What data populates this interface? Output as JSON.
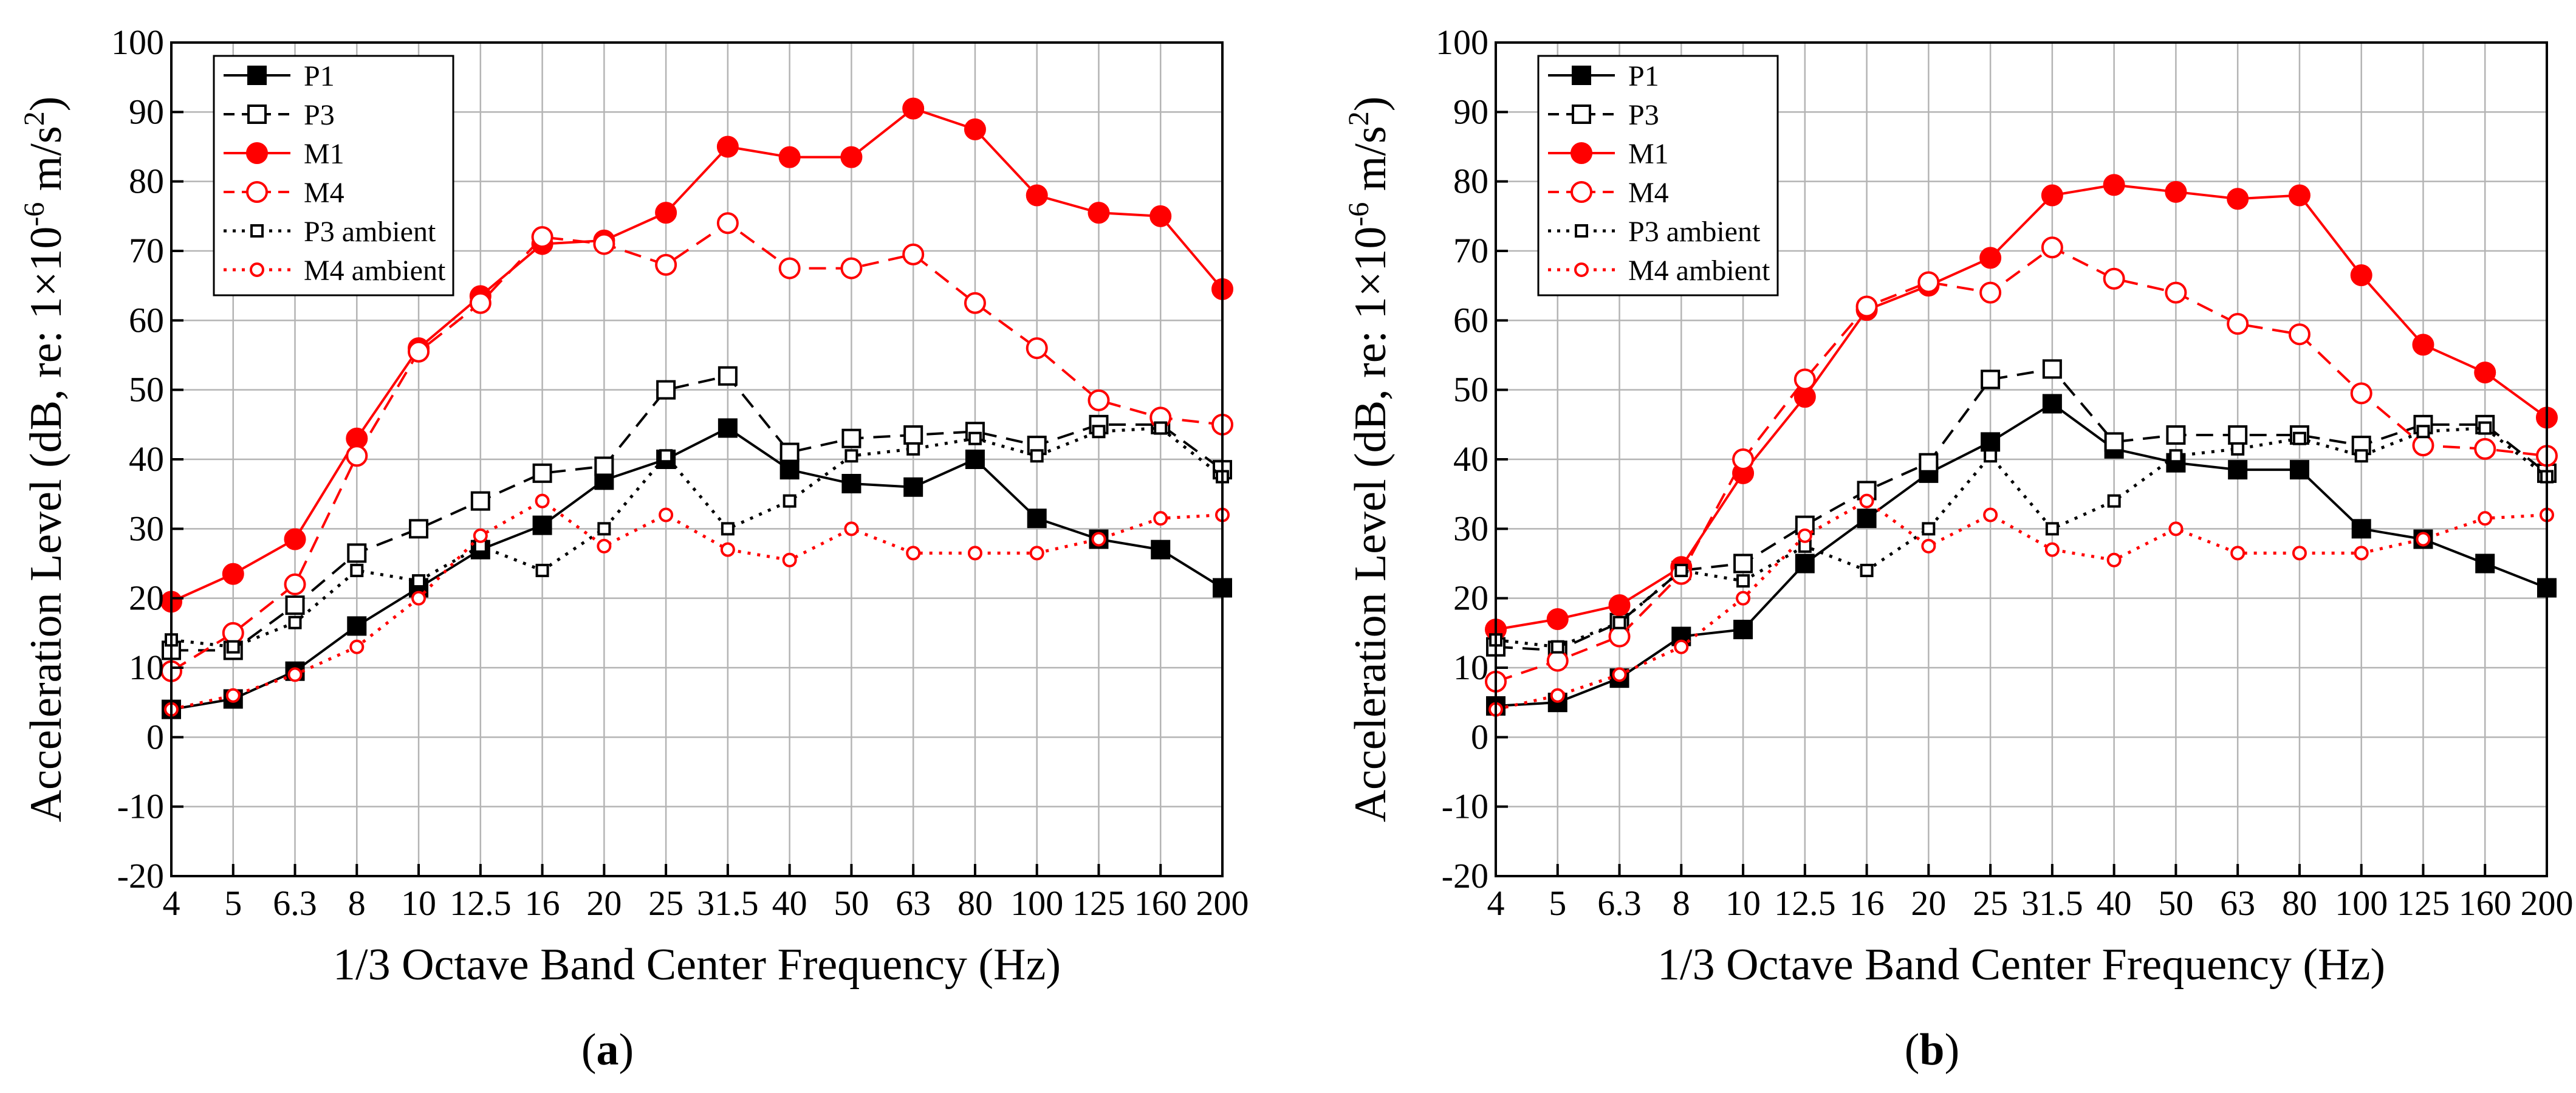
{
  "chart_data": [
    {
      "panel_label": "a",
      "type": "line",
      "xlabel": "1/3 Octave Band Center Frequency (Hz)",
      "ylabel": {
        "main": "Acceleration Level (dB, re: 1×10",
        "exp1": "-6",
        "mid": " m/s",
        "exp2": "2",
        "end": ")"
      },
      "categories": [
        "4",
        "5",
        "6.3",
        "8",
        "10",
        "12.5",
        "16",
        "20",
        "25",
        "31.5",
        "40",
        "50",
        "63",
        "80",
        "100",
        "125",
        "160",
        "200"
      ],
      "ylim": [
        -20,
        100
      ],
      "yticks": [
        -20,
        -10,
        0,
        10,
        20,
        30,
        40,
        50,
        60,
        70,
        80,
        90,
        100
      ],
      "grid": true,
      "legend_position": "top-left",
      "series": [
        {
          "name": "P1",
          "color": "#000000",
          "dash": "solid",
          "marker": "square",
          "filled": true,
          "values": [
            4,
            5.5,
            9.5,
            16,
            21.5,
            27,
            30.5,
            37,
            40,
            44.5,
            38.5,
            36.5,
            36,
            40,
            31.5,
            28.5,
            27,
            21.5
          ]
        },
        {
          "name": "P3",
          "color": "#000000",
          "dash": "dashed",
          "marker": "square",
          "filled": false,
          "values": [
            12.5,
            12.5,
            19,
            26.5,
            30,
            34,
            38,
            39,
            50,
            52,
            41,
            43,
            43.5,
            44,
            42,
            45,
            45,
            38.5
          ]
        },
        {
          "name": "M1",
          "color": "#ff0000",
          "dash": "solid",
          "marker": "circle",
          "filled": true,
          "values": [
            19.5,
            23.5,
            28.5,
            43,
            56,
            63.5,
            71,
            71.5,
            75.5,
            85,
            83.5,
            83.5,
            90.5,
            87.5,
            78,
            75.5,
            75,
            64.5
          ]
        },
        {
          "name": "M4",
          "color": "#ff0000",
          "dash": "dashed",
          "marker": "circle",
          "filled": false,
          "values": [
            9.5,
            15,
            22,
            40.5,
            55.5,
            62.5,
            72,
            71,
            68,
            74,
            67.5,
            67.5,
            69.5,
            62.5,
            56,
            48.5,
            46,
            45
          ]
        },
        {
          "name": "P3 ambient",
          "color": "#000000",
          "dash": "dotted",
          "marker": "square-small",
          "filled": false,
          "values": [
            14,
            13,
            16.5,
            24,
            22.5,
            27.5,
            24,
            30,
            40.5,
            30,
            34,
            40.5,
            41.5,
            43,
            40.5,
            44,
            44.5,
            37.5
          ]
        },
        {
          "name": "M4 ambient",
          "color": "#ff0000",
          "dash": "dotted",
          "marker": "circle-small",
          "filled": false,
          "values": [
            4,
            6,
            9,
            13,
            20,
            29,
            34,
            27.5,
            32,
            27,
            25.5,
            30,
            26.5,
            26.5,
            26.5,
            28.5,
            31.5,
            32
          ]
        }
      ]
    },
    {
      "panel_label": "b",
      "type": "line",
      "xlabel": "1/3 Octave Band Center Frequency (Hz)",
      "ylabel": {
        "main": "Acceleration Level (dB, re: 1×10",
        "exp1": "-6",
        "mid": " m/s",
        "exp2": "2",
        "end": ")"
      },
      "categories": [
        "4",
        "5",
        "6.3",
        "8",
        "10",
        "12.5",
        "16",
        "20",
        "25",
        "31.5",
        "40",
        "50",
        "63",
        "80",
        "100",
        "125",
        "160",
        "200"
      ],
      "ylim": [
        -20,
        100
      ],
      "yticks": [
        -20,
        -10,
        0,
        10,
        20,
        30,
        40,
        50,
        60,
        70,
        80,
        90,
        100
      ],
      "grid": true,
      "legend_position": "top-left",
      "series": [
        {
          "name": "P1",
          "color": "#000000",
          "dash": "solid",
          "marker": "square",
          "filled": true,
          "values": [
            4.5,
            5,
            8.5,
            14.5,
            15.5,
            25,
            31.5,
            38,
            42.5,
            48,
            41.5,
            39.5,
            38.5,
            38.5,
            30,
            28.5,
            25,
            21.5
          ]
        },
        {
          "name": "P3",
          "color": "#000000",
          "dash": "dashed",
          "marker": "square",
          "filled": false,
          "values": [
            13,
            12.5,
            16.5,
            24,
            25,
            30.5,
            35.5,
            39.5,
            51.5,
            53,
            42.5,
            43.5,
            43.5,
            43.5,
            42,
            45,
            45,
            38
          ]
        },
        {
          "name": "M1",
          "color": "#ff0000",
          "dash": "solid",
          "marker": "circle",
          "filled": true,
          "values": [
            15.5,
            17,
            19,
            24.5,
            38,
            49,
            61.5,
            65,
            69,
            78,
            79.5,
            78.5,
            77.5,
            78,
            66.5,
            56.5,
            52.5,
            46
          ]
        },
        {
          "name": "M4",
          "color": "#ff0000",
          "dash": "dashed",
          "marker": "circle",
          "filled": false,
          "values": [
            8,
            11,
            14.5,
            23.5,
            40,
            51.5,
            62,
            65.5,
            64,
            70.5,
            66,
            64,
            59.5,
            58,
            49.5,
            42,
            41.5,
            40.5
          ]
        },
        {
          "name": "P3 ambient",
          "color": "#000000",
          "dash": "dotted",
          "marker": "square-small",
          "filled": false,
          "values": [
            14,
            13,
            16.5,
            24,
            22.5,
            27.5,
            24,
            30,
            40.5,
            30,
            34,
            40.5,
            41.5,
            43,
            40.5,
            44,
            44.5,
            37.5
          ]
        },
        {
          "name": "M4 ambient",
          "color": "#ff0000",
          "dash": "dotted",
          "marker": "circle-small",
          "filled": false,
          "values": [
            4,
            6,
            9,
            13,
            20,
            29,
            34,
            27.5,
            32,
            27,
            25.5,
            30,
            26.5,
            26.5,
            26.5,
            28.5,
            31.5,
            32
          ]
        }
      ]
    }
  ]
}
